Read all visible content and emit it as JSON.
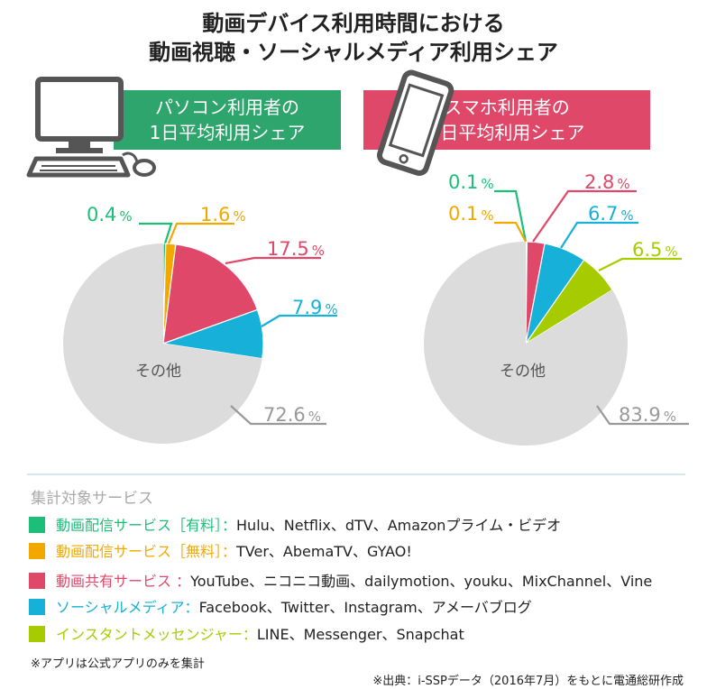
{
  "title_line1": "動画デバイス利用時間における",
  "title_line2": "動画視聴・ソーシャルメディア利用シェア",
  "colors": {
    "green": "#2ea56c",
    "pink": "#e0486a",
    "paid": "#1bbf78",
    "free": "#f3a800",
    "share": "#e0486a",
    "social": "#16b0d8",
    "messenger": "#a6cc00",
    "other": "#dcdcdc",
    "icon": "#555555"
  },
  "pc_banner": {
    "line1": "パソコン利用者の",
    "line2": "1日平均利用シェア"
  },
  "sp_banner": {
    "line1": "スマホ利用者の",
    "line2": "1日平均利用シェア"
  },
  "chart_data": [
    {
      "type": "pie",
      "title": "パソコン利用者の1日平均利用シェア",
      "slices": [
        {
          "key": "paid",
          "value": 0.4,
          "label": "0.4",
          "unit": "%"
        },
        {
          "key": "free",
          "value": 1.6,
          "label": "1.6",
          "unit": "%"
        },
        {
          "key": "share",
          "value": 17.5,
          "label": "17.5",
          "unit": "%"
        },
        {
          "key": "social",
          "value": 7.9,
          "label": "7.9",
          "unit": "%"
        },
        {
          "key": "other",
          "value": 72.6,
          "label": "72.6",
          "unit": "%",
          "name": "その他"
        }
      ]
    },
    {
      "type": "pie",
      "title": "スマホ利用者の1日平均利用シェア",
      "slices": [
        {
          "key": "paid",
          "value": 0.1,
          "label": "0.1",
          "unit": "%"
        },
        {
          "key": "free",
          "value": 0.1,
          "label": "0.1",
          "unit": "%"
        },
        {
          "key": "share",
          "value": 2.8,
          "label": "2.8",
          "unit": "%"
        },
        {
          "key": "social",
          "value": 6.7,
          "label": "6.7",
          "unit": "%"
        },
        {
          "key": "messenger",
          "value": 6.5,
          "label": "6.5",
          "unit": "%"
        },
        {
          "key": "other",
          "value": 83.9,
          "label": "83.9",
          "unit": "%",
          "name": "その他"
        }
      ]
    }
  ],
  "services_heading": "集計対象サービス",
  "legend": [
    {
      "key": "paid",
      "category": "動画配信サービス［有料］：",
      "items": "Hulu、Netflix、dTV、Amazonプライム・ビデオ"
    },
    {
      "key": "free",
      "category": "動画配信サービス［無料］：",
      "items": "TVer、AbemaTV、GYAO!"
    },
    {
      "key": "share",
      "category": "動画共有サービス ：",
      "items": "YouTube、ニコニコ動画、dailymotion、youku、MixChannel、Vine"
    },
    {
      "key": "social",
      "category": "ソーシャルメディア：",
      "items": "Facebook、Twitter、Instagram、アメーバブログ"
    },
    {
      "key": "messenger",
      "category": "インスタントメッセンジャー：",
      "items": "LINE、Messenger、Snapchat"
    }
  ],
  "note": "※アプリは公式アプリのみを集計",
  "source": "※出典：i-SSPデータ（2016年7月）をもとに電通総研作成"
}
